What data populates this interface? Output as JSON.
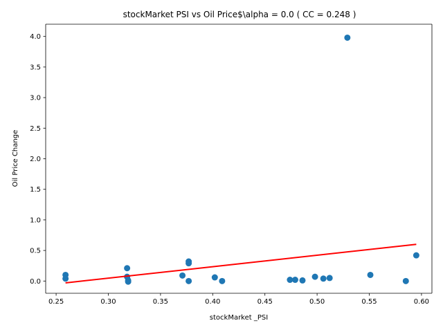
{
  "chart_data": {
    "type": "scatter",
    "title": "stockMarket  PSI vs Oil Price$\\alpha = 0.0 ( CC = 0.248 )",
    "xlabel": "stockMarket _PSI",
    "ylabel": "Oil Price Change",
    "xlim": [
      0.24,
      0.61
    ],
    "ylim": [
      -0.2,
      4.2
    ],
    "xticks": [
      "0.25",
      "0.30",
      "0.35",
      "0.40",
      "0.45",
      "0.50",
      "0.55",
      "0.60"
    ],
    "yticks": [
      "0.0",
      "0.5",
      "1.0",
      "1.5",
      "2.0",
      "2.5",
      "3.0",
      "3.5",
      "4.0"
    ],
    "grid": false,
    "point_color": "#1f77b4",
    "fit_line_color": "#ff0000",
    "points": [
      {
        "x": 0.259,
        "y": 0.1
      },
      {
        "x": 0.259,
        "y": 0.04
      },
      {
        "x": 0.318,
        "y": 0.21
      },
      {
        "x": 0.318,
        "y": 0.07
      },
      {
        "x": 0.319,
        "y": 0.01
      },
      {
        "x": 0.319,
        "y": -0.01
      },
      {
        "x": 0.371,
        "y": 0.09
      },
      {
        "x": 0.377,
        "y": 0.32
      },
      {
        "x": 0.377,
        "y": 0.29
      },
      {
        "x": 0.377,
        "y": 0.0
      },
      {
        "x": 0.402,
        "y": 0.06
      },
      {
        "x": 0.409,
        "y": 0.0
      },
      {
        "x": 0.474,
        "y": 0.02
      },
      {
        "x": 0.479,
        "y": 0.02
      },
      {
        "x": 0.486,
        "y": 0.01
      },
      {
        "x": 0.498,
        "y": 0.07
      },
      {
        "x": 0.506,
        "y": 0.04
      },
      {
        "x": 0.512,
        "y": 0.05
      },
      {
        "x": 0.529,
        "y": 3.98
      },
      {
        "x": 0.551,
        "y": 0.1
      },
      {
        "x": 0.585,
        "y": 0.0
      },
      {
        "x": 0.595,
        "y": 0.42
      }
    ],
    "fit_line": {
      "x": [
        0.259,
        0.595
      ],
      "y": [
        -0.03,
        0.6
      ]
    }
  }
}
